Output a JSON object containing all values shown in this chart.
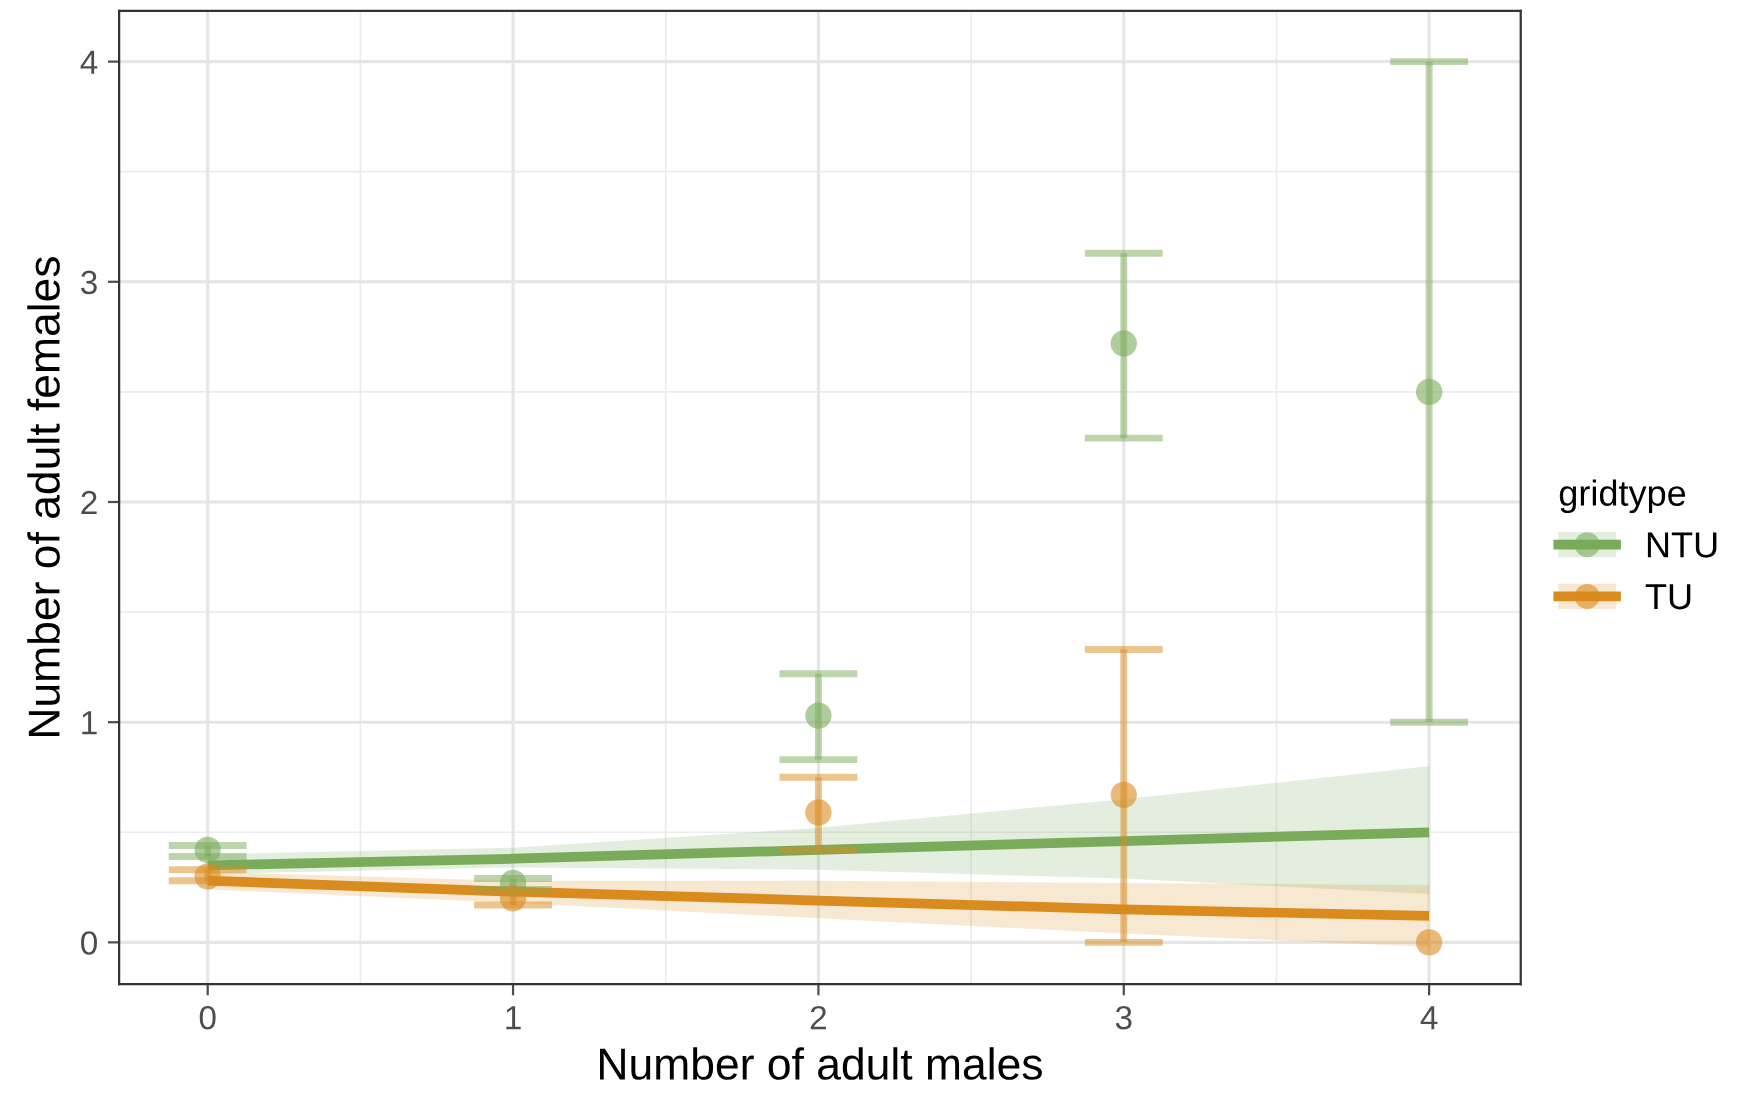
{
  "chart_data": {
    "type": "scatter",
    "xlabel": "Number of adult males",
    "ylabel": "Number of adult females",
    "legend_title": "gridtype",
    "legend": "right",
    "x": [
      0,
      1,
      2,
      3,
      4
    ],
    "series": [
      {
        "name": "NTU",
        "color": "#7aab5a",
        "marker": "circle",
        "values": [
          0.42,
          0.27,
          1.03,
          2.72,
          2.5
        ],
        "errors": [
          [
            0.39,
            0.44
          ],
          [
            0.24,
            0.29
          ],
          [
            0.83,
            1.22
          ],
          [
            2.29,
            3.13
          ],
          [
            1.0,
            4.0
          ]
        ]
      },
      {
        "name": "TU",
        "color": "#d98b1e",
        "marker": "circle",
        "values": [
          0.3,
          0.2,
          0.59,
          0.67,
          0.0
        ],
        "errors": [
          [
            0.28,
            0.33
          ],
          [
            0.17,
            0.23
          ],
          [
            0.42,
            0.75
          ],
          [
            0.0,
            1.33
          ],
          null
        ]
      },
      {
        "type": "line",
        "color": "#7aab5a",
        "x": [
          0,
          1,
          2,
          3,
          4
        ],
        "values": [
          0.35,
          0.38,
          0.42,
          0.46,
          0.5
        ],
        "lower": [
          0.31,
          0.34,
          0.33,
          0.29,
          0.22
        ],
        "upper": [
          0.4,
          0.43,
          0.52,
          0.65,
          0.8
        ]
      },
      {
        "type": "line",
        "color": "#d98b1e",
        "x": [
          0,
          1,
          2,
          3,
          4
        ],
        "values": [
          0.28,
          0.23,
          0.19,
          0.15,
          0.12
        ],
        "lower": [
          0.24,
          0.18,
          0.11,
          0.04,
          -0.02
        ],
        "upper": [
          0.32,
          0.28,
          0.28,
          0.27,
          0.26
        ]
      }
    ],
    "xlim": [
      -0.29,
      4.3
    ],
    "ylim": [
      -0.19,
      4.23
    ],
    "xticks": [
      0,
      1,
      2,
      3,
      4
    ],
    "yticks": [
      0,
      1,
      2,
      3,
      4
    ],
    "grid": true
  }
}
